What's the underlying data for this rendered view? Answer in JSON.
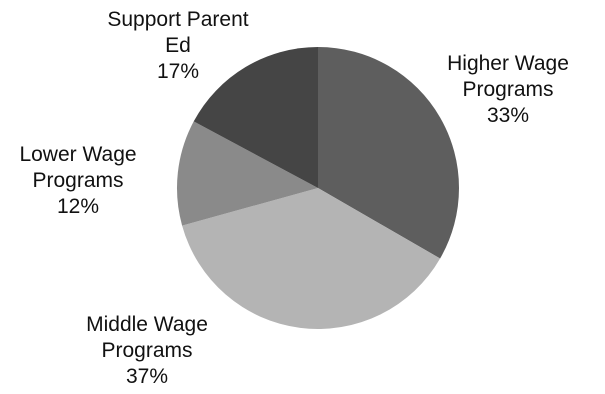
{
  "chart_data": {
    "type": "pie",
    "title": "",
    "start_angle_deg": 0,
    "direction": "clockwise",
    "slices": [
      {
        "name": "Higher Wage Programs",
        "label_lines": [
          "Higher Wage",
          "Programs"
        ],
        "percent_label": "33%",
        "value": 33,
        "color": "#5e5e5e"
      },
      {
        "name": "Middle Wage Programs",
        "label_lines": [
          "Middle Wage",
          "Programs"
        ],
        "percent_label": "37%",
        "value": 37,
        "color": "#b4b4b4"
      },
      {
        "name": "Lower Wage Programs",
        "label_lines": [
          "Lower Wage",
          "Programs"
        ],
        "percent_label": "12%",
        "value": 12,
        "color": "#8a8a8a"
      },
      {
        "name": "Support Parent Ed",
        "label_lines": [
          "Support Parent",
          "Ed"
        ],
        "percent_label": "17%",
        "value": 17,
        "color": "#454545"
      }
    ]
  }
}
